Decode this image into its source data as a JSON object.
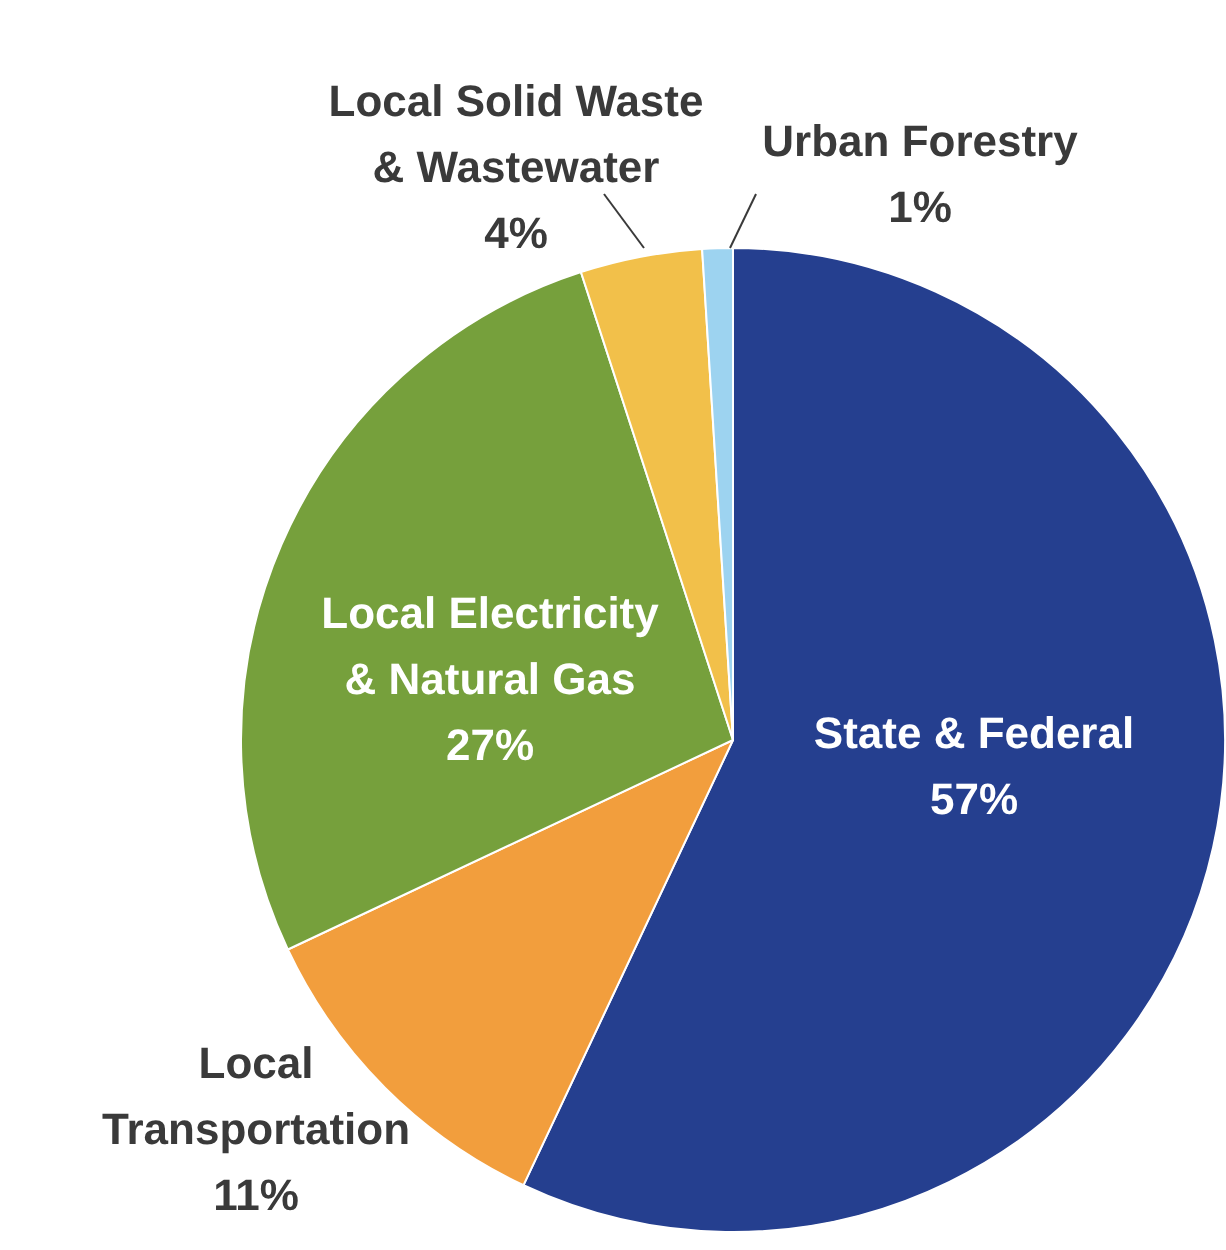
{
  "chart_data": {
    "type": "pie",
    "categories": [
      "State & Federal",
      "Local Transportation",
      "Local Electricity & Natural Gas",
      "Local Solid Waste & Wastewater",
      "Urban Forestry"
    ],
    "values": [
      57,
      11,
      27,
      4,
      1
    ],
    "colors": [
      "#253f8f",
      "#f29e3d",
      "#76a03c",
      "#f2c04a",
      "#9dd3f0"
    ],
    "value_labels": [
      "57%",
      "11%",
      "27%",
      "4%",
      "1%"
    ],
    "legend": false
  }
}
